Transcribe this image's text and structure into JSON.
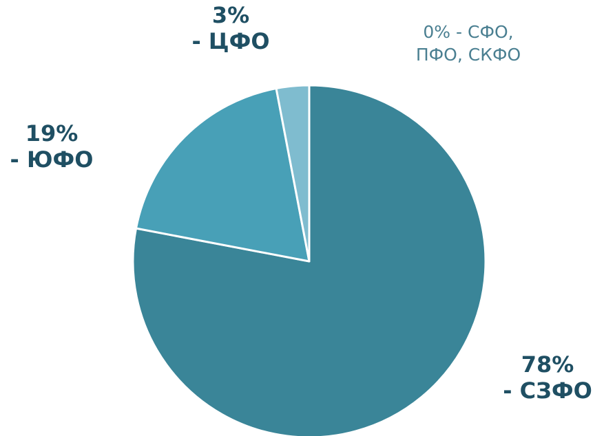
{
  "chart_data": {
    "type": "pie",
    "slices": [
      {
        "name": "СЗФО",
        "value": 78,
        "color": "#3a8598"
      },
      {
        "name": "ЮФО",
        "value": 19,
        "color": "#48a0b7"
      },
      {
        "name": "ЦФО",
        "value": 3,
        "color": "#7fbccf"
      },
      {
        "name": "СФО, ПФО, СКФО",
        "value": 0,
        "color": "#9fd0de"
      }
    ],
    "labels": {
      "szfo": {
        "line1": "78%",
        "line2": "- СЗФО"
      },
      "yufo": {
        "line1": "19%",
        "line2": "- ЮФО"
      },
      "tsfo": {
        "line1": "3%",
        "line2": "- ЦФО"
      },
      "other": {
        "line1": "0% - СФО,",
        "line2": "ПФО, СКФО"
      }
    }
  }
}
